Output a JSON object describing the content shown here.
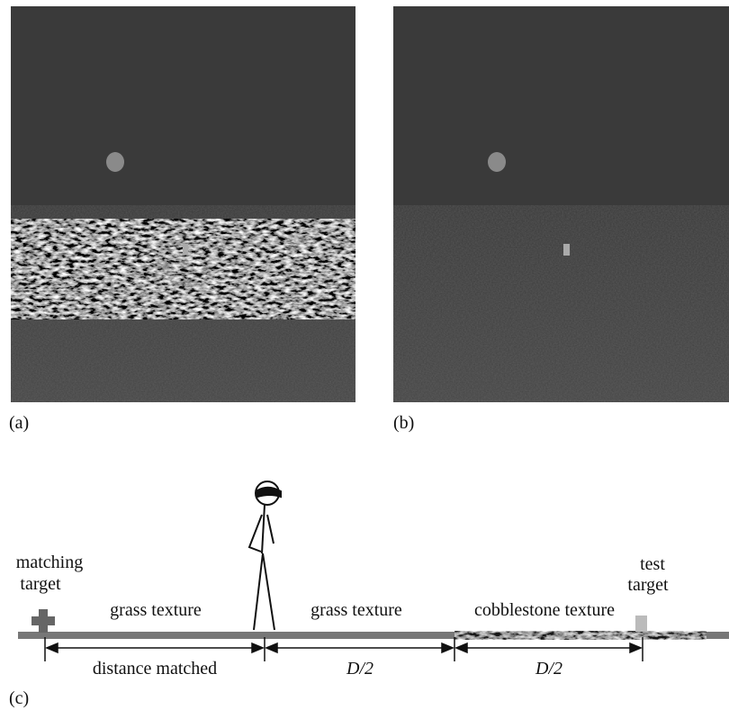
{
  "panels": [
    {
      "label": "(a)"
    },
    {
      "label": "(b)"
    }
  ],
  "diagram": {
    "label": "(c)",
    "matching_target": [
      "matching",
      "target"
    ],
    "test_target": [
      "test",
      "target"
    ],
    "segments": [
      {
        "texture": "grass texture",
        "distance": "distance matched"
      },
      {
        "texture": "grass texture",
        "distance": "D/2"
      },
      {
        "texture": "cobblestone texture",
        "distance": "D/2"
      }
    ]
  }
}
